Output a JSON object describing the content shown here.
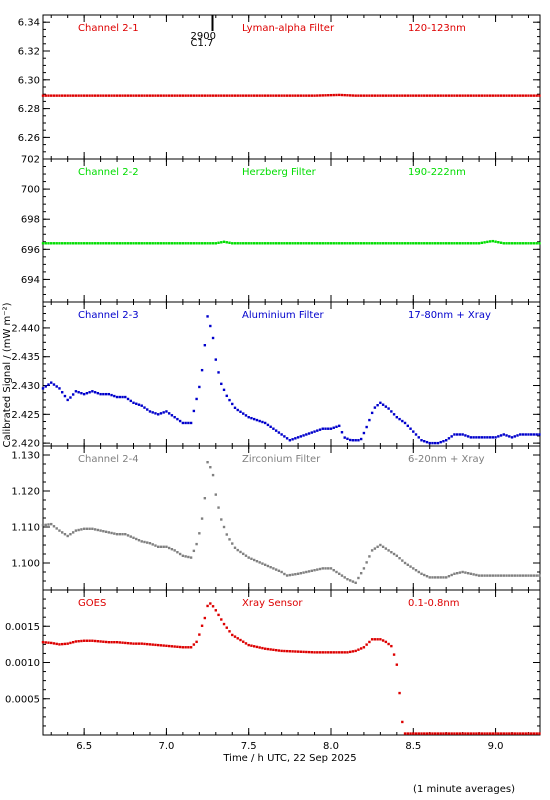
{
  "chart_data": {
    "type": "scatter",
    "xlabel": "Time / h UTC, 22 Sep 2025",
    "ylabel": "Calibrated Signal / (mW m⁻²)",
    "footnote": "(1 minute averages)",
    "xlim": [
      6.25,
      9.27
    ],
    "xticks": [
      "6.5",
      "7.0",
      "7.5",
      "8.0",
      "8.5",
      "9.0"
    ],
    "flare_marker": {
      "time": 7.28,
      "lines": [
        "2900",
        "C1.7"
      ]
    },
    "panels": [
      {
        "channel": "Channel 2-1",
        "filter": "Lyman-alpha Filter",
        "band": "120-123nm",
        "color": "#dd0000",
        "ylim": [
          6.245,
          6.345
        ],
        "yticks": [
          "6.26",
          "6.28",
          "6.30",
          "6.32",
          "6.34"
        ],
        "series": {
          "x": [
            6.25,
            7.9,
            8.05,
            8.15,
            9.27
          ],
          "y": [
            6.289,
            6.289,
            6.2895,
            6.289,
            6.289
          ]
        }
      },
      {
        "channel": "Channel 2-2",
        "filter": "Herzberg Filter",
        "band": "190-222nm",
        "color": "#00dd00",
        "ylim": [
          692.5,
          702
        ],
        "yticks": [
          "694",
          "696",
          "698",
          "700",
          "702"
        ],
        "series": {
          "x": [
            6.25,
            7.3,
            7.35,
            7.4,
            8.9,
            8.98,
            9.05,
            9.27
          ],
          "y": [
            696.4,
            696.4,
            696.5,
            696.4,
            696.4,
            696.55,
            696.4,
            696.4
          ]
        }
      },
      {
        "channel": "Channel 2-3",
        "filter": "Aluminium Filter",
        "band": "17-80nm + Xray",
        "color": "#0000cc",
        "ylim": [
          2.4195,
          2.4445
        ],
        "yticks": [
          "2.420",
          "2.425",
          "2.430",
          "2.435",
          "2.440"
        ],
        "series": {
          "x": [
            6.25,
            6.3,
            6.35,
            6.4,
            6.42,
            6.45,
            6.5,
            6.55,
            6.6,
            6.65,
            6.7,
            6.75,
            6.8,
            6.85,
            6.9,
            6.95,
            7.0,
            7.05,
            7.1,
            7.15,
            7.19,
            7.21,
            7.23,
            7.25,
            7.28,
            7.3,
            7.33,
            7.37,
            7.42,
            7.5,
            7.6,
            7.7,
            7.75,
            7.8,
            7.85,
            7.9,
            7.95,
            8.0,
            8.05,
            8.08,
            8.12,
            8.18,
            8.22,
            8.26,
            8.3,
            8.35,
            8.4,
            8.45,
            8.5,
            8.55,
            8.6,
            8.65,
            8.7,
            8.75,
            8.8,
            8.85,
            8.9,
            8.95,
            9.0,
            9.05,
            9.1,
            9.15,
            9.2,
            9.27
          ],
          "y": [
            2.4295,
            2.4305,
            2.4295,
            2.4275,
            2.428,
            2.429,
            2.4285,
            2.429,
            2.4285,
            2.4285,
            2.428,
            2.428,
            2.427,
            2.4265,
            2.4255,
            2.425,
            2.4255,
            2.4245,
            2.4235,
            2.4235,
            2.4285,
            2.431,
            2.436,
            2.442,
            2.439,
            2.4345,
            2.4305,
            2.428,
            2.426,
            2.4245,
            2.4235,
            2.4215,
            2.4205,
            2.421,
            2.4215,
            2.422,
            2.4225,
            2.4225,
            2.423,
            2.421,
            2.4205,
            2.4205,
            2.423,
            2.426,
            2.427,
            2.426,
            2.4245,
            2.4235,
            2.422,
            2.4205,
            2.42,
            2.42,
            2.4205,
            2.4215,
            2.4215,
            2.421,
            2.421,
            2.421,
            2.421,
            2.4215,
            2.421,
            2.4215,
            2.4215,
            2.4215
          ]
        }
      },
      {
        "channel": "Channel 2-4",
        "filter": "Zirconium Filter",
        "band": "6-20nm + Xray",
        "color": "#808080",
        "ylim": [
          1.0925,
          1.1325
        ],
        "yticks": [
          "1.100",
          "1.110",
          "1.120",
          "1.130"
        ],
        "series": {
          "x": [
            6.25,
            6.3,
            6.35,
            6.4,
            6.45,
            6.5,
            6.55,
            6.6,
            6.65,
            6.7,
            6.75,
            6.8,
            6.85,
            6.9,
            6.95,
            7.0,
            7.05,
            7.1,
            7.15,
            7.19,
            7.21,
            7.23,
            7.25,
            7.28,
            7.3,
            7.33,
            7.37,
            7.42,
            7.5,
            7.6,
            7.7,
            7.73,
            7.8,
            7.85,
            7.9,
            7.95,
            8.0,
            8.05,
            8.1,
            8.15,
            8.2,
            8.25,
            8.3,
            8.35,
            8.4,
            8.45,
            8.5,
            8.55,
            8.6,
            8.65,
            8.7,
            8.75,
            8.8,
            8.85,
            8.9,
            8.95,
            9.0,
            9.05,
            9.1,
            9.15,
            9.2,
            9.27
          ],
          "y": [
            1.1105,
            1.1108,
            1.109,
            1.1075,
            1.109,
            1.1095,
            1.1095,
            1.109,
            1.1085,
            1.108,
            1.108,
            1.107,
            1.106,
            1.1055,
            1.1045,
            1.1045,
            1.1035,
            1.102,
            1.1015,
            1.106,
            1.1105,
            1.116,
            1.128,
            1.1255,
            1.119,
            1.1125,
            1.1075,
            1.104,
            1.1015,
            1.0995,
            1.0975,
            1.0965,
            1.097,
            1.0975,
            1.098,
            1.0985,
            1.0985,
            1.097,
            1.0955,
            1.0945,
            1.0985,
            1.1035,
            1.105,
            1.1035,
            1.102,
            1.1,
            1.0985,
            1.097,
            1.096,
            1.096,
            1.096,
            1.097,
            1.0975,
            1.097,
            1.0965,
            1.0965,
            1.0965,
            1.0965,
            1.0965,
            1.0965,
            1.0965,
            1.0965
          ]
        }
      },
      {
        "channel": "GOES",
        "filter": "Xray Sensor",
        "band": "0.1-0.8nm",
        "color": "#dd0000",
        "ylim": [
          0.0,
          0.002
        ],
        "yticks": [
          "0.0005",
          "0.0010",
          "0.0015"
        ],
        "series": {
          "x": [
            6.25,
            6.3,
            6.35,
            6.4,
            6.45,
            6.5,
            6.55,
            6.6,
            6.65,
            6.7,
            6.75,
            6.8,
            6.85,
            6.9,
            6.95,
            7.0,
            7.05,
            7.1,
            7.15,
            7.19,
            7.21,
            7.23,
            7.25,
            7.27,
            7.3,
            7.35,
            7.4,
            7.5,
            7.6,
            7.7,
            7.8,
            7.9,
            8.0,
            8.1,
            8.15,
            8.2,
            8.25,
            8.3,
            8.33,
            8.37,
            8.4,
            8.42,
            8.44,
            8.46,
            8.5,
            8.6,
            8.7,
            8.8,
            8.9,
            9.0,
            9.1,
            9.2,
            9.27
          ],
          "y": [
            0.00128,
            0.00127,
            0.00125,
            0.00126,
            0.00129,
            0.0013,
            0.0013,
            0.00129,
            0.00128,
            0.00128,
            0.00127,
            0.00126,
            0.00126,
            0.00125,
            0.00124,
            0.00123,
            0.00122,
            0.00121,
            0.00121,
            0.0013,
            0.00147,
            0.00158,
            0.00178,
            0.00182,
            0.00172,
            0.00153,
            0.00138,
            0.00124,
            0.00119,
            0.00116,
            0.00115,
            0.00114,
            0.00114,
            0.00114,
            0.00116,
            0.00121,
            0.00132,
            0.00132,
            0.00129,
            0.00122,
            0.00097,
            0.0005,
            2e-05,
            2e-05,
            2e-05,
            2e-05,
            2e-05,
            2e-05,
            2e-05,
            2e-05,
            2e-05,
            2e-05,
            2e-05
          ]
        }
      }
    ]
  }
}
